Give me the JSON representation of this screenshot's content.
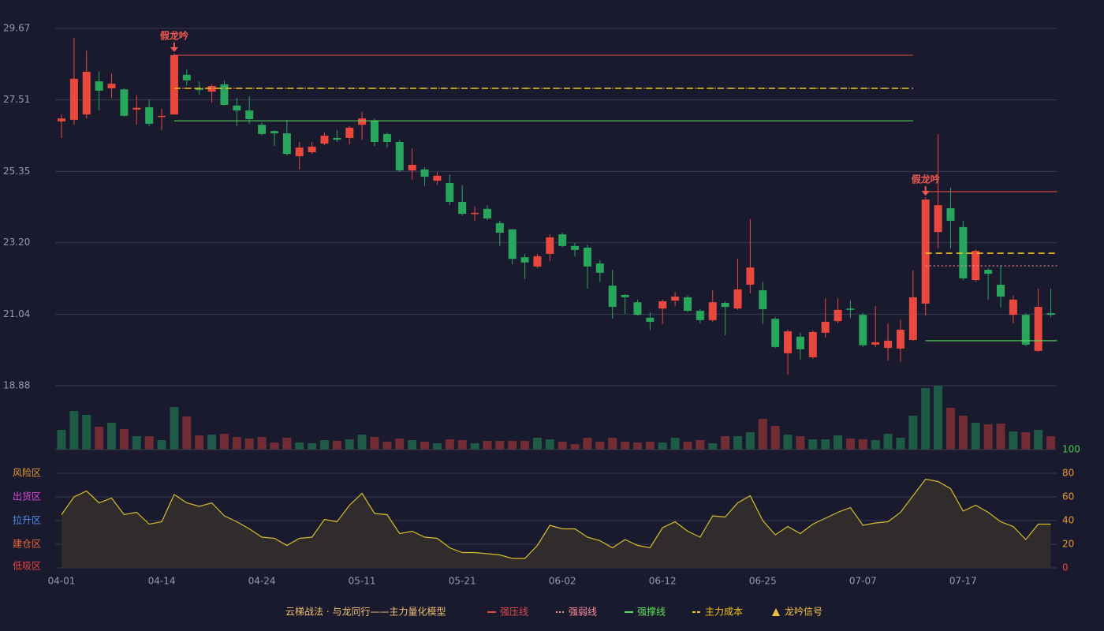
{
  "chart_data": {
    "type": "candlestick",
    "categories": [
      "04-01",
      null,
      null,
      null,
      null,
      null,
      null,
      null,
      "04-14",
      null,
      null,
      null,
      null,
      null,
      null,
      null,
      "04-24",
      null,
      null,
      null,
      null,
      null,
      null,
      null,
      "05-11",
      null,
      null,
      null,
      null,
      null,
      null,
      null,
      "05-21",
      null,
      null,
      null,
      null,
      null,
      null,
      null,
      "06-02",
      null,
      null,
      null,
      null,
      null,
      null,
      null,
      "06-12",
      null,
      null,
      null,
      null,
      null,
      null,
      null,
      "06-25",
      null,
      null,
      null,
      null,
      null,
      null,
      null,
      "07-07",
      null,
      null,
      null,
      null,
      null,
      null,
      null,
      "07-17",
      null,
      null,
      null,
      null,
      null,
      null,
      null
    ],
    "open": [
      26.86,
      26.91,
      27.07,
      28.07,
      27.86,
      27.83,
      27.22,
      27.29,
      27.0,
      27.07,
      28.27,
      27.86,
      27.76,
      27.98,
      27.34,
      27.19,
      26.76,
      26.57,
      26.5,
      25.81,
      25.93,
      26.19,
      26.36,
      26.36,
      26.76,
      26.88,
      26.48,
      26.24,
      25.38,
      25.41,
      25.07,
      25.0,
      24.43,
      24.07,
      24.22,
      23.79,
      23.6,
      22.76,
      22.48,
      22.86,
      23.45,
      23.1,
      23.05,
      22.57,
      21.9,
      21.62,
      21.4,
      20.93,
      21.21,
      21.45,
      21.55,
      21.14,
      20.86,
      21.38,
      21.21,
      21.93,
      21.76,
      20.9,
      19.86,
      20.36,
      19.74,
      20.48,
      20.83,
      21.21,
      21.02,
      20.12,
      20.02,
      20.0,
      20.26,
      21.36,
      23.52,
      24.24,
      23.67,
      22.07,
      22.38,
      21.93,
      21.02,
      21.02,
      19.93,
      21.07
    ],
    "high": [
      27.07,
      29.39,
      29.0,
      28.38,
      28.31,
      27.86,
      27.65,
      27.53,
      27.24,
      28.91,
      28.43,
      28.07,
      27.98,
      28.1,
      27.57,
      27.62,
      26.83,
      26.6,
      26.9,
      26.24,
      26.24,
      26.52,
      26.6,
      26.72,
      27.15,
      26.95,
      26.52,
      26.31,
      26.05,
      25.48,
      25.33,
      25.26,
      24.93,
      24.29,
      24.33,
      23.86,
      23.62,
      22.86,
      22.86,
      23.45,
      23.5,
      23.19,
      23.14,
      22.67,
      22.38,
      21.64,
      21.48,
      21.1,
      21.48,
      21.71,
      21.6,
      21.19,
      21.76,
      21.43,
      22.71,
      23.91,
      22.02,
      20.95,
      20.57,
      20.48,
      20.55,
      21.52,
      21.52,
      21.45,
      21.07,
      21.29,
      20.76,
      20.88,
      22.36,
      24.57,
      26.48,
      24.86,
      23.86,
      23.0,
      22.43,
      22.52,
      21.6,
      21.07,
      21.81,
      21.81
    ],
    "low": [
      26.36,
      26.76,
      26.95,
      27.19,
      27.57,
      27.0,
      26.76,
      26.72,
      26.6,
      27.07,
      27.95,
      27.67,
      27.43,
      27.34,
      26.72,
      26.79,
      26.43,
      26.12,
      25.83,
      25.41,
      25.88,
      26.14,
      26.24,
      26.17,
      26.31,
      26.12,
      26.07,
      25.33,
      25.09,
      24.91,
      24.95,
      24.33,
      24.02,
      23.86,
      23.88,
      23.1,
      22.55,
      22.1,
      22.43,
      22.64,
      23.05,
      22.79,
      21.81,
      22.02,
      20.9,
      21.05,
      21.0,
      20.55,
      20.74,
      21.29,
      21.1,
      20.76,
      20.81,
      20.4,
      21.17,
      21.67,
      20.74,
      20.02,
      19.21,
      19.67,
      19.69,
      20.33,
      20.76,
      20.93,
      20.05,
      20.05,
      19.64,
      19.6,
      20.24,
      21.0,
      23.02,
      23.02,
      22.07,
      22.02,
      21.48,
      21.24,
      20.76,
      20.07,
      19.9,
      20.95
    ],
    "close": [
      26.95,
      28.15,
      28.36,
      27.79,
      28.0,
      27.03,
      27.27,
      26.79,
      27.03,
      28.86,
      28.1,
      27.81,
      27.93,
      27.36,
      27.19,
      26.93,
      26.48,
      26.5,
      25.88,
      26.07,
      26.1,
      26.43,
      26.31,
      26.67,
      26.95,
      26.24,
      26.24,
      25.38,
      25.55,
      25.19,
      25.22,
      24.43,
      24.07,
      24.1,
      23.93,
      23.5,
      22.71,
      22.6,
      22.79,
      23.36,
      23.1,
      22.98,
      22.48,
      22.29,
      21.26,
      21.55,
      21.02,
      20.81,
      21.43,
      21.57,
      21.14,
      20.86,
      21.4,
      21.26,
      21.79,
      22.45,
      21.19,
      20.05,
      20.52,
      19.98,
      20.5,
      20.81,
      21.17,
      21.17,
      20.1,
      20.19,
      20.24,
      20.57,
      21.55,
      24.5,
      24.33,
      23.86,
      22.12,
      22.95,
      22.26,
      21.57,
      21.48,
      20.12,
      21.26,
      21.02
    ],
    "up_color": "#e8493c",
    "down_color": "#27a65c",
    "ylim": [
      18.88,
      29.67
    ],
    "yticks": [
      29.67,
      27.51,
      25.35,
      {
        "value": 23.2,
        "label": "23.20"
      },
      21.04,
      18.88
    ],
    "grid": true,
    "levels": [
      {
        "name": "强压线",
        "color": "#e04a4a",
        "style": "solid",
        "segments": [
          {
            "from": 9,
            "to": 68,
            "value": 28.86
          },
          {
            "from": 69,
            "to": 79,
            "value": 24.74
          }
        ]
      },
      {
        "name": "强弱线",
        "color": "#ff8a9a",
        "style": "dotted",
        "segments": [
          {
            "from": 9,
            "to": 68,
            "value": 27.86
          },
          {
            "from": 69,
            "to": 79,
            "value": 22.5
          }
        ]
      },
      {
        "name": "强撑线",
        "color": "#5be35b",
        "style": "solid",
        "segments": [
          {
            "from": 9,
            "to": 68,
            "value": 26.88
          },
          {
            "from": 69,
            "to": 79,
            "value": 20.24
          }
        ]
      },
      {
        "name": "主力成本",
        "color": "#f2c417",
        "style": "dashed",
        "segments": [
          {
            "from": 9,
            "to": 68,
            "value": 27.86
          },
          {
            "from": 69,
            "to": 79,
            "value": 22.88
          }
        ]
      }
    ],
    "signals": [
      {
        "index": 9,
        "label": "假龙吟"
      },
      {
        "index": 69,
        "label": "假龙吟"
      }
    ],
    "signal_color": "#ef5a4e",
    "signal_name": "龙吟信号",
    "signal_legend_color": "#f0c040",
    "legend_title": "云梯战法 · 与龙同行——主力量化模型",
    "volume": {
      "values": [
        25,
        49,
        44,
        29,
        34,
        26,
        17,
        17,
        12,
        54,
        42,
        18,
        19,
        20,
        16,
        14,
        16,
        9,
        15,
        9,
        8,
        12,
        11,
        13,
        19,
        16,
        10,
        14,
        12,
        10,
        8,
        13,
        12,
        8,
        11,
        11,
        11,
        11,
        15,
        13,
        10,
        7,
        15,
        10,
        15,
        10,
        9,
        10,
        9,
        15,
        10,
        12,
        8,
        17,
        17,
        22,
        39,
        30,
        19,
        17,
        13,
        13,
        18,
        14,
        13,
        12,
        20,
        15,
        43,
        78,
        81,
        53,
        43,
        34,
        32,
        33,
        23,
        22,
        25,
        17
      ],
      "ylim": [
        0,
        82
      ],
      "up_color": "#1e5a45",
      "down_color": "#712c36"
    },
    "oscillator": {
      "values": [
        45,
        60,
        65,
        55,
        59,
        45,
        47,
        37,
        39,
        62,
        55,
        52,
        55,
        44,
        39,
        33,
        26,
        25,
        19,
        25,
        26,
        41,
        39,
        53,
        63,
        46,
        45,
        29,
        31,
        26,
        25,
        17,
        13,
        13,
        12,
        11,
        8,
        8,
        19,
        36,
        33,
        33,
        26,
        23,
        17,
        24,
        19,
        17,
        34,
        39,
        31,
        26,
        44,
        43,
        55,
        61,
        40,
        28,
        35,
        29,
        37,
        42,
        47,
        51,
        36,
        38,
        39,
        47,
        61,
        75,
        73,
        67,
        48,
        53,
        47,
        39,
        35,
        24,
        37,
        37
      ],
      "color": "#d8bd2c",
      "fill": "#2f2c2b",
      "ylim": [
        0,
        100
      ],
      "yticks": [
        0,
        20,
        40,
        60,
        80,
        100
      ],
      "ytick_colors": [
        "#e84343",
        "#e89a32",
        "#e89a32",
        "#e89a32",
        "#e89a32",
        "#3ecf4e"
      ],
      "zones": [
        {
          "value": 80,
          "label": "风险区",
          "color": "#e89a32"
        },
        {
          "value": 60,
          "label": "出货区",
          "color": "#df45df"
        },
        {
          "value": 40,
          "label": "拉升区",
          "color": "#4d8fea"
        },
        {
          "value": 20,
          "label": "建仓区",
          "color": "#ea643a"
        },
        {
          "value": 0,
          "label": "低吸区",
          "color": "#e84343"
        }
      ]
    }
  }
}
